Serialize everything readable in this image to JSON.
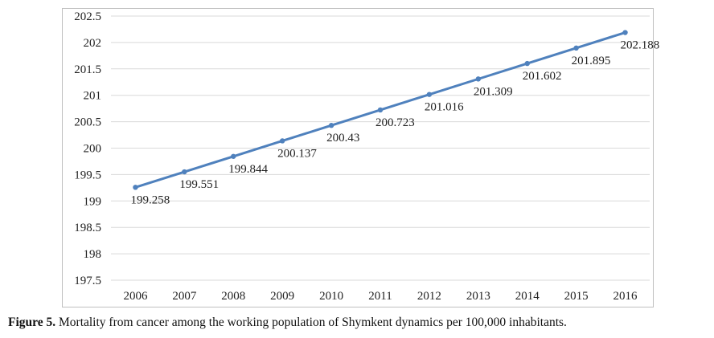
{
  "caption": {
    "label": "Figure 5.",
    "text": " Mortality from cancer among the working population of Shymkent dynamics per 100,000 inhabitants."
  },
  "chart_data": {
    "type": "line",
    "title": "",
    "xlabel": "",
    "ylabel": "",
    "categories": [
      "2006",
      "2007",
      "2008",
      "2009",
      "2010",
      "2011",
      "2012",
      "2013",
      "2014",
      "2015",
      "2016"
    ],
    "series": [
      {
        "values": [
          199.258,
          199.551,
          199.844,
          200.137,
          200.43,
          200.723,
          201.016,
          201.309,
          201.602,
          201.895,
          202.188
        ],
        "labels": [
          "199.258",
          "199.551",
          "199.844",
          "200.137",
          "200.43",
          "200.723",
          "201.016",
          "201.309",
          "201.602",
          "201.895",
          "202.188"
        ],
        "color": "#4f81bd"
      }
    ],
    "ylim": [
      197.5,
      202.5
    ],
    "yticks": [
      "202.5",
      "202",
      "201.5",
      "201",
      "200.5",
      "200",
      "199.5",
      "199",
      "198.5",
      "198",
      "197.5"
    ],
    "grid": true,
    "legend": "none",
    "gridline_color": "#d9d9d9"
  }
}
